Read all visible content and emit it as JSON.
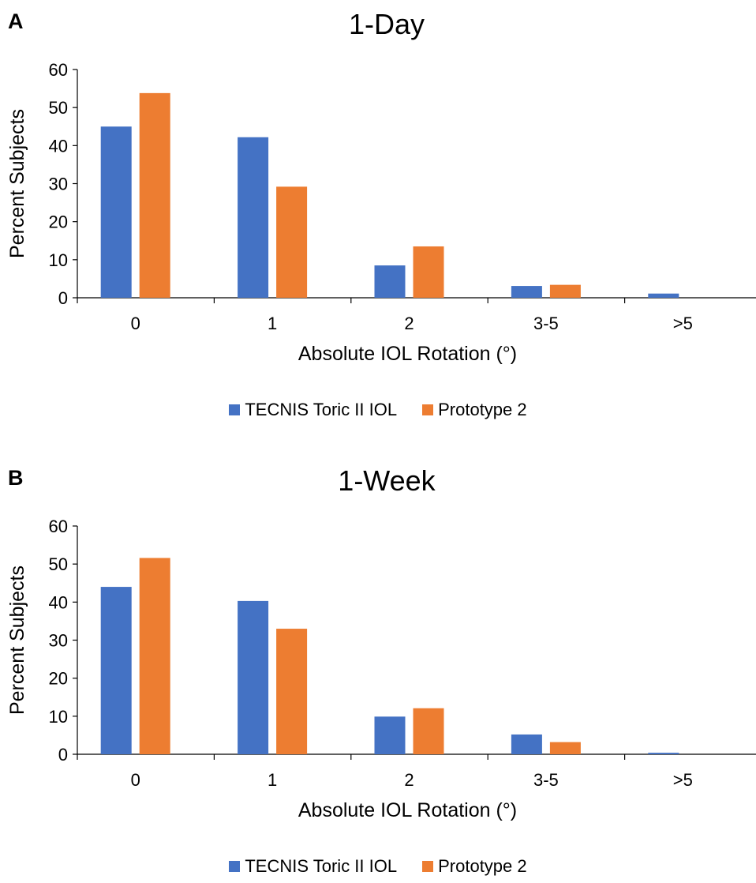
{
  "colors": {
    "series1": "#4472C4",
    "series2": "#ED7D31",
    "axis": "#000000"
  },
  "chart_data": [
    {
      "type": "bar",
      "panel_label": "A",
      "title": "1-Day",
      "xlabel": "Absolute IOL Rotation (°)",
      "ylabel": "Percent Subjects",
      "categories": [
        "0",
        "1",
        "2",
        "3-5",
        ">5"
      ],
      "ylim": [
        0,
        60
      ],
      "yticks": [
        "0",
        "10",
        "20",
        "30",
        "40",
        "50",
        "60"
      ],
      "grid": false,
      "legend_position": "bottom",
      "series": [
        {
          "name": "TECNIS Toric II IOL",
          "values": [
            45.0,
            42.2,
            8.5,
            3.1,
            1.1
          ]
        },
        {
          "name": "Prototype 2",
          "values": [
            53.8,
            29.2,
            13.5,
            3.4,
            0
          ]
        }
      ]
    },
    {
      "type": "bar",
      "panel_label": "B",
      "title": "1-Week",
      "xlabel": "Absolute IOL Rotation (°)",
      "ylabel": "Percent Subjects",
      "categories": [
        "0",
        "1",
        "2",
        "3-5",
        ">5"
      ],
      "ylim": [
        0,
        60
      ],
      "yticks": [
        "0",
        "10",
        "20",
        "30",
        "40",
        "50",
        "60"
      ],
      "grid": false,
      "legend_position": "bottom",
      "series": [
        {
          "name": "TECNIS Toric II IOL",
          "values": [
            44.0,
            40.3,
            9.9,
            5.2,
            0.4
          ]
        },
        {
          "name": "Prototype 2",
          "values": [
            51.6,
            33.0,
            12.1,
            3.2,
            0
          ]
        }
      ]
    }
  ]
}
